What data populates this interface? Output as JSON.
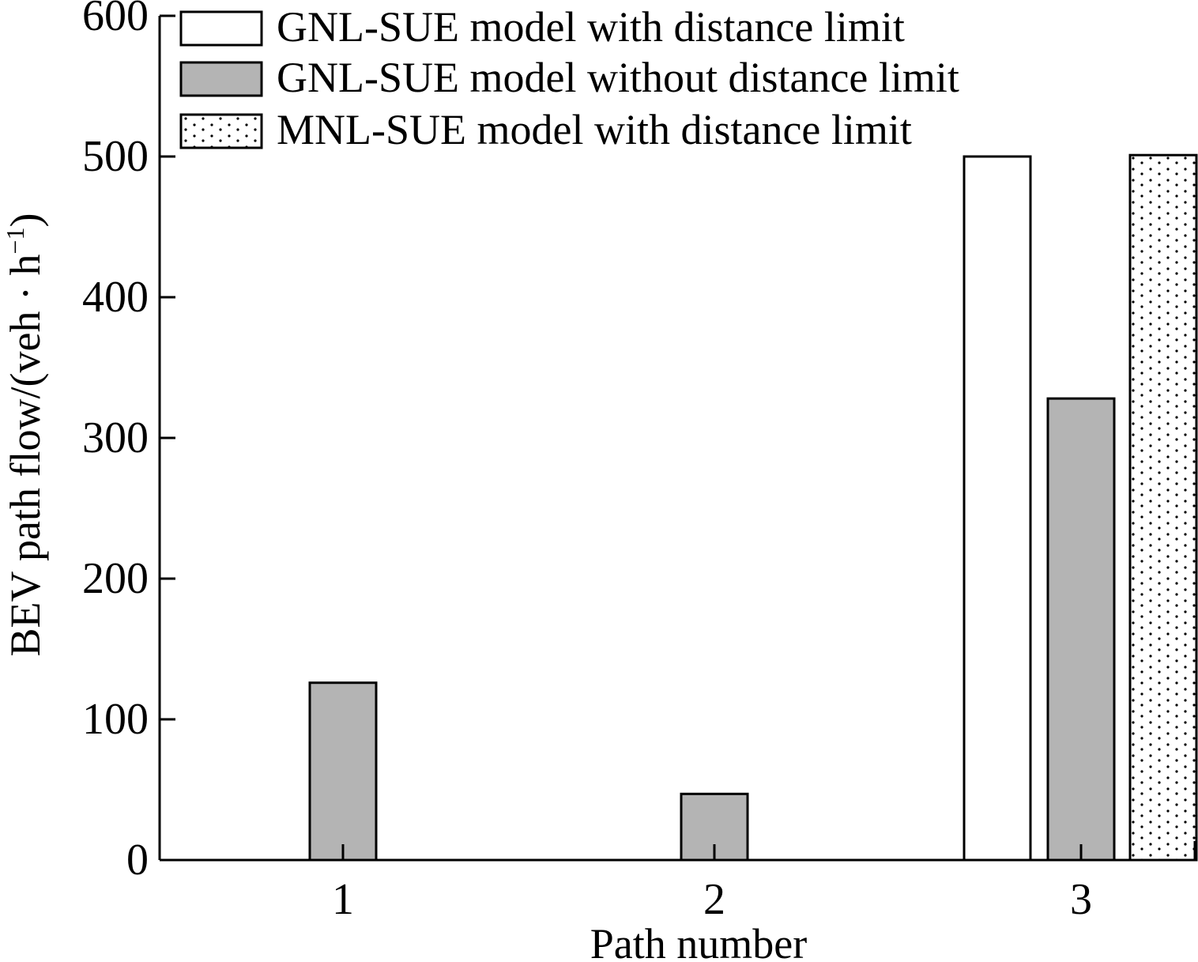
{
  "chart_data": {
    "type": "bar",
    "title": "",
    "xlabel": "Path number",
    "ylabel": "BEV path flow/(veh · h",
    "ylabel_sup": "−1",
    "ylabel_end": ")",
    "categories": [
      "1",
      "2",
      "3"
    ],
    "ylim": [
      0,
      600
    ],
    "yticks": [
      "0",
      "100",
      "200",
      "300",
      "400",
      "500",
      "600"
    ],
    "grid": false,
    "legend_position": "top-left",
    "series": [
      {
        "name": "GNL-SUE model with distance limit",
        "values": [
          0,
          0,
          500
        ],
        "fill": "#ffffff",
        "pattern": "none"
      },
      {
        "name": "GNL-SUE model without distance limit",
        "values": [
          126,
          47,
          328
        ],
        "fill": "#b4b4b4",
        "pattern": "none"
      },
      {
        "name": "MNL-SUE model with distance limit",
        "values": [
          0,
          0,
          501
        ],
        "fill": "#ffffff",
        "pattern": "dots"
      }
    ]
  }
}
